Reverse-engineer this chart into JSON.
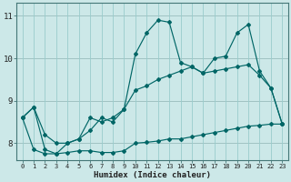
{
  "xlabel": "Humidex (Indice chaleur)",
  "bg_color": "#cce8e8",
  "line_color": "#006666",
  "grid_color": "#99cccc",
  "red_line_color": "#cc9999",
  "x_labels": [
    "0",
    "1",
    "2",
    "3",
    "4",
    "5",
    "6",
    "7",
    "8",
    "9",
    "10",
    "11",
    "12",
    "13",
    "14",
    "15",
    "16",
    "17",
    "18",
    "19",
    "20",
    "21",
    "22",
    "23"
  ],
  "ylim": [
    7.6,
    11.3
  ],
  "yticks": [
    8,
    9,
    10,
    11
  ],
  "ytick_labels": [
    "8",
    "9",
    "10",
    "11"
  ],
  "series_max": [
    8.6,
    8.85,
    7.85,
    7.75,
    8.0,
    8.1,
    8.6,
    8.5,
    8.6,
    8.8,
    10.1,
    10.6,
    10.9,
    10.85,
    9.9,
    9.8,
    9.65,
    10.0,
    10.05,
    10.6,
    10.8,
    9.7,
    9.3,
    8.45
  ],
  "series_min": [
    8.6,
    7.85,
    7.75,
    7.75,
    7.78,
    7.82,
    7.82,
    7.78,
    7.78,
    7.82,
    8.0,
    8.02,
    8.05,
    8.1,
    8.1,
    8.15,
    8.2,
    8.25,
    8.3,
    8.35,
    8.4,
    8.42,
    8.45,
    8.45
  ],
  "series_mean": [
    8.6,
    8.85,
    8.2,
    8.0,
    8.0,
    8.1,
    8.3,
    8.6,
    8.5,
    8.8,
    9.25,
    9.35,
    9.5,
    9.6,
    9.7,
    9.8,
    9.65,
    9.7,
    9.75,
    9.8,
    9.85,
    9.6,
    9.3,
    8.45
  ]
}
